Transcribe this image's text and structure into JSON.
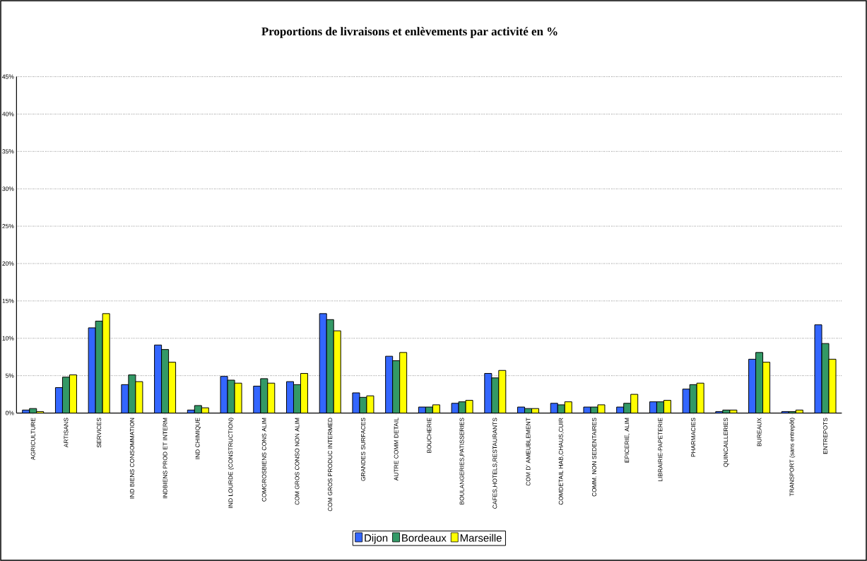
{
  "chart_data": {
    "type": "bar",
    "title": "Proportions de livraisons et enlèvements par activité en %",
    "categories": [
      "AGRICULTURE",
      "ARTISANS",
      "SERVICES",
      "IND BIENS CONSOMMATION",
      "INDBIENS PROD ET INTERM",
      "IND CHIMIQUE",
      "IND LOURDE (CONSTRUCTION)",
      "COMGROSBIENS CONS ALIM",
      "COM GROS CONSO NON ALIM",
      "COM GROS PRODUC  INTERMED",
      "GRANDES SURFACES",
      "AUTRE COMM DETAIL",
      "BOUCHERIE",
      "BOULANGERIES,PATISSERIES",
      "CAFES,HOTELS,RESTAURANTS",
      "COM D' AMEUBLEMENT",
      "COMDETAIL HAB,CHAUS,CUIR",
      "COMM. NON SEDENTAIRES",
      "EPICERIE, ALIM",
      "LIBRAIRIE-PAPETERIE",
      "PHARMACIES",
      "QUINCAILLERIES",
      "BUREAUX",
      "TRANSPORT (sans entrepôt)",
      "ENTREPOTS"
    ],
    "series": [
      {
        "name": "Dijon",
        "color": "#3366ff",
        "values": [
          0.4,
          3.4,
          11.4,
          3.8,
          9.1,
          0.4,
          4.9,
          3.6,
          4.2,
          13.3,
          2.7,
          7.6,
          0.8,
          1.3,
          5.3,
          0.8,
          1.3,
          0.8,
          0.8,
          1.5,
          3.2,
          0.2,
          7.2,
          0.2,
          11.8
        ]
      },
      {
        "name": "Bordeaux",
        "color": "#339966",
        "values": [
          0.6,
          4.8,
          12.3,
          5.1,
          8.5,
          1.0,
          4.4,
          4.6,
          3.8,
          12.5,
          2.1,
          7.0,
          0.8,
          1.5,
          4.7,
          0.6,
          1.1,
          0.8,
          1.3,
          1.5,
          3.8,
          0.4,
          8.1,
          0.2,
          9.3
        ]
      },
      {
        "name": "Marseille",
        "color": "#ffff00",
        "values": [
          0.2,
          5.1,
          13.3,
          4.2,
          6.8,
          0.7,
          4.0,
          4.0,
          5.3,
          11.0,
          2.3,
          8.1,
          1.1,
          1.7,
          5.7,
          0.6,
          1.5,
          1.1,
          2.5,
          1.7,
          4.0,
          0.4,
          6.8,
          0.4,
          7.2
        ]
      }
    ],
    "ylim": [
      0,
      45
    ],
    "yticks": [
      {
        "value": 0,
        "label": "0%"
      },
      {
        "value": 5,
        "label": "5%"
      },
      {
        "value": 10,
        "label": "10%"
      },
      {
        "value": 15,
        "label": "15%"
      },
      {
        "value": 20,
        "label": "20%"
      },
      {
        "value": 25,
        "label": "25%"
      },
      {
        "value": 30,
        "label": "30%"
      },
      {
        "value": 35,
        "label": "35%"
      },
      {
        "value": 40,
        "label": "40%"
      },
      {
        "value": 45,
        "label": "45%"
      }
    ],
    "grid": "y",
    "legend": "bottom"
  }
}
